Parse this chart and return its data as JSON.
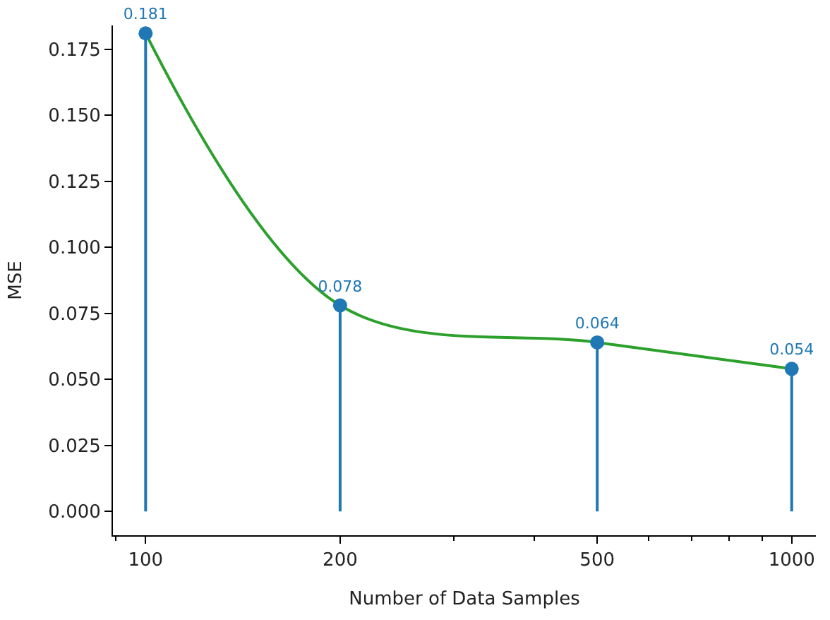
{
  "chart_data": {
    "type": "lollipop",
    "xlabel": "Number of Data Samples",
    "ylabel": "MSE",
    "log": "x",
    "xlim": [
      89,
      1090
    ],
    "xticks": [
      {
        "value": 90,
        "label": null
      },
      100,
      200,
      {
        "value": 300,
        "label": null
      },
      {
        "value": 400,
        "label": null
      },
      500,
      {
        "value": 600,
        "label": null
      },
      {
        "value": 700,
        "label": null
      },
      {
        "value": 800,
        "label": null
      },
      {
        "value": 900,
        "label": null
      },
      1000
    ],
    "ylim": [
      -0.009,
      0.184
    ],
    "yticks": [
      {
        "value": 0,
        "label": "0.000"
      },
      0.025,
      {
        "value": 0.05,
        "label": "0.050"
      },
      0.075,
      {
        "value": 0.1,
        "label": "0.100"
      },
      0.125,
      {
        "value": 0.15,
        "label": "0.150"
      },
      0.175
    ],
    "series": [
      {
        "color": "#1f77b4",
        "marker": "circle",
        "x": [
          100,
          200,
          500,
          1000
        ],
        "values": [
          0.181,
          0.078,
          0.064,
          0.054
        ],
        "value_labels": [
          "0.181",
          "0.078",
          "0.064",
          "0.054"
        ]
      },
      {
        "type": "line",
        "color": "#2ca02c",
        "marker": "none",
        "x": [
          100,
          200,
          500,
          1000
        ],
        "values": [
          0.181,
          0.078,
          0.064,
          0.054
        ]
      }
    ]
  }
}
